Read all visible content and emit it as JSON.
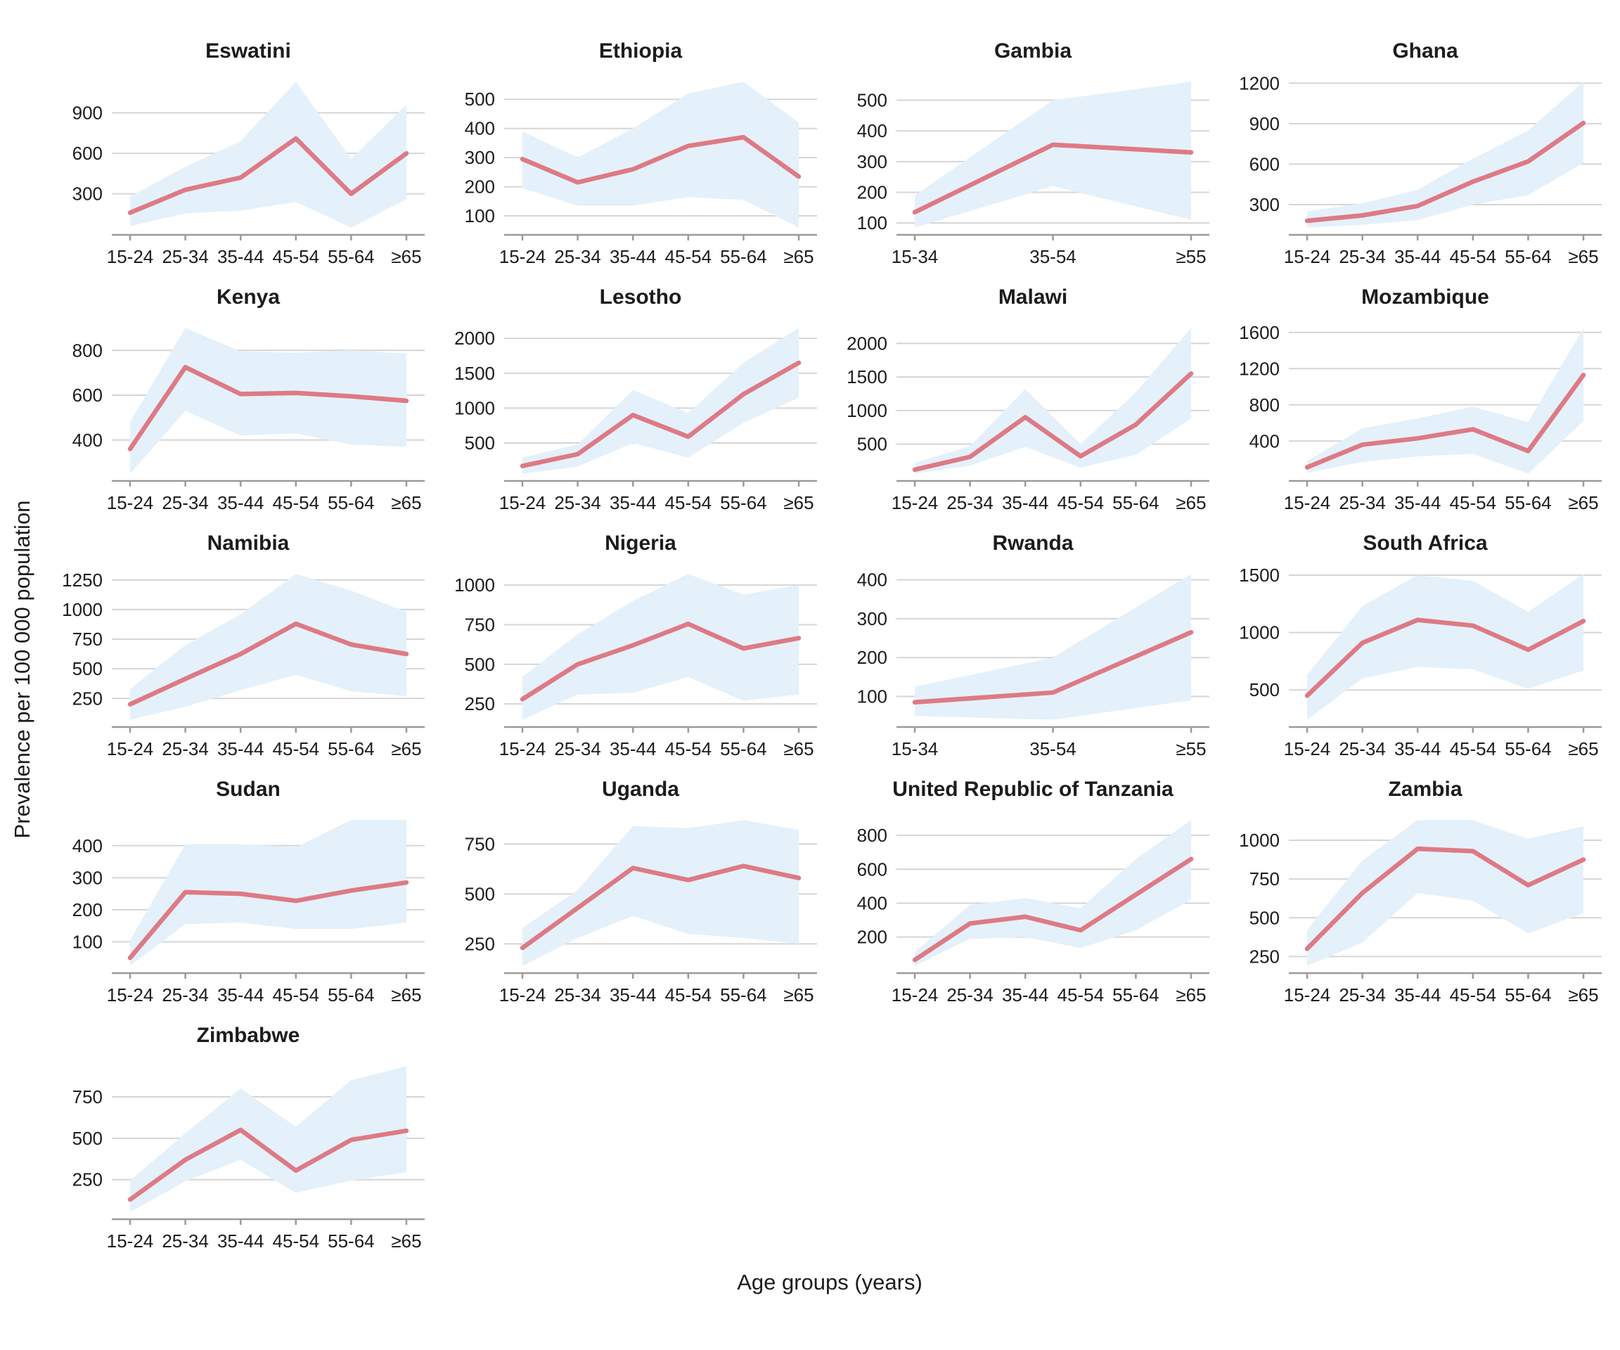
{
  "figure": {
    "y_axis_label": "Prevalence per 100 000 population",
    "x_axis_label": "Age groups (years)"
  },
  "colors": {
    "line": "#dd7a85",
    "band": "#e4f1fa",
    "grid": "#d5d5d5",
    "axis": "#9a9a9a",
    "tick": "#9a9a9a",
    "text": "#1c1c1c"
  },
  "chart_data": [
    {
      "type": "line",
      "title": "Eswatini",
      "xlabel": "Age groups (years)",
      "ylabel": "Prevalence per 100 000 population",
      "categories": [
        "15-24",
        "25-34",
        "35-44",
        "45-54",
        "55-64",
        "≥65"
      ],
      "y_ticks": [
        300,
        600,
        900
      ],
      "values": [
        160,
        330,
        420,
        710,
        300,
        600
      ],
      "lower": [
        60,
        155,
        175,
        240,
        50,
        260
      ],
      "upper": [
        280,
        500,
        690,
        1130,
        560,
        960
      ]
    },
    {
      "type": "line",
      "title": "Ethiopia",
      "categories": [
        "15-24",
        "25-34",
        "35-44",
        "45-54",
        "55-64",
        "≥65"
      ],
      "y_ticks": [
        100,
        200,
        300,
        400,
        500
      ],
      "values": [
        295,
        215,
        260,
        340,
        370,
        235
      ],
      "lower": [
        195,
        135,
        135,
        165,
        155,
        60
      ],
      "upper": [
        390,
        300,
        400,
        520,
        560,
        420
      ]
    },
    {
      "type": "line",
      "title": "Gambia",
      "categories": [
        "15-34",
        "35-54",
        "≥55"
      ],
      "y_ticks": [
        100,
        200,
        300,
        400,
        500
      ],
      "values": [
        135,
        355,
        330
      ],
      "lower": [
        85,
        220,
        110
      ],
      "upper": [
        190,
        500,
        560
      ]
    },
    {
      "type": "line",
      "title": "Ghana",
      "categories": [
        "15-24",
        "25-34",
        "35-44",
        "45-54",
        "55-64",
        "≥65"
      ],
      "y_ticks": [
        300,
        600,
        900,
        1200
      ],
      "values": [
        180,
        220,
        290,
        470,
        620,
        905
      ],
      "lower": [
        130,
        150,
        185,
        300,
        370,
        610
      ],
      "upper": [
        250,
        310,
        410,
        640,
        850,
        1210
      ]
    },
    {
      "type": "line",
      "title": "Kenya",
      "categories": [
        "15-24",
        "25-34",
        "35-44",
        "45-54",
        "55-64",
        "≥65"
      ],
      "y_ticks": [
        400,
        600,
        800
      ],
      "values": [
        360,
        725,
        605,
        610,
        595,
        575
      ],
      "lower": [
        250,
        530,
        420,
        430,
        380,
        370
      ],
      "upper": [
        480,
        900,
        795,
        790,
        800,
        785
      ]
    },
    {
      "type": "line",
      "title": "Lesotho",
      "categories": [
        "15-24",
        "25-34",
        "35-44",
        "45-54",
        "55-64",
        "≥65"
      ],
      "y_ticks": [
        500,
        1000,
        1500,
        2000
      ],
      "values": [
        170,
        340,
        900,
        590,
        1200,
        1650
      ],
      "lower": [
        60,
        160,
        500,
        290,
        790,
        1150
      ],
      "upper": [
        290,
        480,
        1260,
        930,
        1650,
        2150
      ]
    },
    {
      "type": "line",
      "title": "Malawi",
      "categories": [
        "15-24",
        "25-34",
        "35-44",
        "45-54",
        "55-64",
        "≥65"
      ],
      "y_ticks": [
        500,
        1000,
        1500,
        2000
      ],
      "values": [
        120,
        310,
        900,
        320,
        790,
        1550
      ],
      "lower": [
        60,
        180,
        460,
        150,
        340,
        880
      ],
      "upper": [
        220,
        470,
        1320,
        500,
        1270,
        2230
      ]
    },
    {
      "type": "line",
      "title": "Mozambique",
      "categories": [
        "15-24",
        "25-34",
        "35-44",
        "45-54",
        "55-64",
        "≥65"
      ],
      "y_ticks": [
        400,
        800,
        1200,
        1600
      ],
      "values": [
        110,
        360,
        430,
        530,
        290,
        1130
      ],
      "lower": [
        50,
        170,
        230,
        260,
        40,
        620
      ],
      "upper": [
        180,
        540,
        650,
        780,
        610,
        1650
      ]
    },
    {
      "type": "line",
      "title": "Namibia",
      "categories": [
        "15-24",
        "25-34",
        "35-44",
        "45-54",
        "55-64",
        "≥65"
      ],
      "y_ticks": [
        250,
        500,
        750,
        1000,
        1250
      ],
      "values": [
        200,
        415,
        625,
        880,
        705,
        625
      ],
      "lower": [
        70,
        180,
        320,
        450,
        310,
        270
      ],
      "upper": [
        330,
        700,
        960,
        1300,
        1160,
        980
      ]
    },
    {
      "type": "line",
      "title": "Nigeria",
      "categories": [
        "15-24",
        "25-34",
        "35-44",
        "45-54",
        "55-64",
        "≥65"
      ],
      "y_ticks": [
        250,
        500,
        750,
        1000
      ],
      "values": [
        280,
        500,
        620,
        755,
        600,
        665
      ],
      "lower": [
        150,
        310,
        320,
        420,
        270,
        310
      ],
      "upper": [
        420,
        690,
        900,
        1070,
        940,
        1000
      ]
    },
    {
      "type": "line",
      "title": "Rwanda",
      "categories": [
        "15-34",
        "35-54",
        "≥55"
      ],
      "y_ticks": [
        100,
        200,
        300,
        400
      ],
      "values": [
        85,
        110,
        265
      ],
      "lower": [
        50,
        40,
        90
      ],
      "upper": [
        125,
        200,
        415
      ]
    },
    {
      "type": "line",
      "title": "South Africa",
      "categories": [
        "15-24",
        "25-34",
        "35-44",
        "45-54",
        "55-64",
        "≥65"
      ],
      "y_ticks": [
        500,
        1000,
        1500
      ],
      "values": [
        450,
        910,
        1110,
        1060,
        850,
        1100
      ],
      "lower": [
        240,
        600,
        700,
        680,
        510,
        670
      ],
      "upper": [
        630,
        1230,
        1500,
        1450,
        1180,
        1510
      ]
    },
    {
      "type": "line",
      "title": "Sudan",
      "categories": [
        "15-24",
        "25-34",
        "35-44",
        "45-54",
        "55-64",
        "≥65"
      ],
      "y_ticks": [
        100,
        200,
        300,
        400
      ],
      "values": [
        50,
        255,
        250,
        228,
        260,
        285
      ],
      "lower": [
        25,
        155,
        160,
        140,
        140,
        160
      ],
      "upper": [
        105,
        405,
        405,
        395,
        480,
        480
      ]
    },
    {
      "type": "line",
      "title": "Uganda",
      "categories": [
        "15-24",
        "25-34",
        "35-44",
        "45-54",
        "55-64",
        "≥65"
      ],
      "y_ticks": [
        250,
        500,
        750
      ],
      "values": [
        230,
        430,
        630,
        570,
        640,
        580
      ],
      "lower": [
        140,
        280,
        390,
        300,
        280,
        250
      ],
      "upper": [
        330,
        520,
        840,
        830,
        870,
        820
      ]
    },
    {
      "type": "line",
      "title": "United Republic of Tanzania",
      "categories": [
        "15-24",
        "25-34",
        "35-44",
        "45-54",
        "55-64",
        "≥65"
      ],
      "y_ticks": [
        200,
        400,
        600,
        800
      ],
      "values": [
        65,
        280,
        320,
        240,
        450,
        660
      ],
      "lower": [
        30,
        190,
        200,
        135,
        240,
        420
      ],
      "upper": [
        110,
        390,
        430,
        370,
        660,
        890
      ]
    },
    {
      "type": "line",
      "title": "Zambia",
      "categories": [
        "15-24",
        "25-34",
        "35-44",
        "45-54",
        "55-64",
        "≥65"
      ],
      "y_ticks": [
        250,
        500,
        750,
        1000
      ],
      "values": [
        300,
        660,
        945,
        930,
        710,
        875
      ],
      "lower": [
        190,
        340,
        660,
        610,
        400,
        530
      ],
      "upper": [
        420,
        870,
        1130,
        1130,
        1010,
        1090
      ]
    },
    {
      "type": "line",
      "title": "Zimbabwe",
      "categories": [
        "15-24",
        "25-34",
        "35-44",
        "45-54",
        "55-64",
        "≥65"
      ],
      "y_ticks": [
        250,
        500,
        750
      ],
      "values": [
        130,
        370,
        550,
        305,
        490,
        545
      ],
      "lower": [
        55,
        240,
        370,
        170,
        245,
        295
      ],
      "upper": [
        245,
        530,
        800,
        570,
        850,
        935
      ]
    }
  ]
}
